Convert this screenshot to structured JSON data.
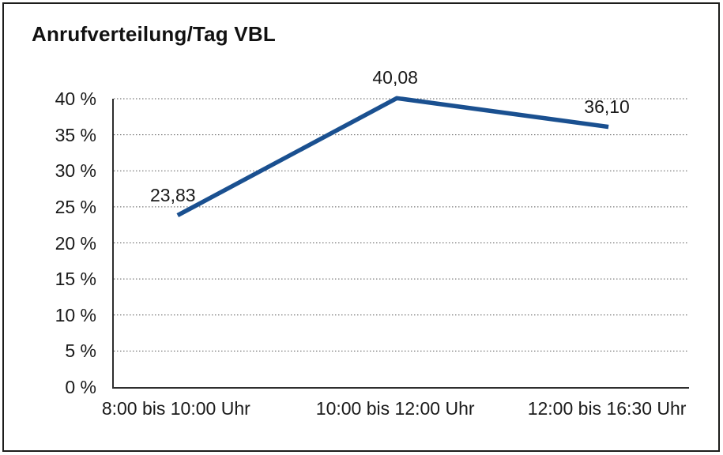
{
  "chart_data": {
    "type": "line",
    "title": "Anrufverteilung/Tag VBL",
    "categories": [
      "8:00 bis 10:00 Uhr",
      "10:00 bis 12:00 Uhr",
      "12:00 bis 16:30 Uhr"
    ],
    "series": [
      {
        "values": [
          23.83,
          40.08,
          36.1
        ]
      }
    ],
    "data_labels": [
      "23,83",
      "40,08",
      "36,10"
    ],
    "y_ticks": [
      {
        "value": 0,
        "label": "0 %"
      },
      {
        "value": 5,
        "label": "5 %"
      },
      {
        "value": 10,
        "label": "10 %"
      },
      {
        "value": 15,
        "label": "15 %"
      },
      {
        "value": 20,
        "label": "20 %"
      },
      {
        "value": 25,
        "label": "25 %"
      },
      {
        "value": 30,
        "label": "30 %"
      },
      {
        "value": 35,
        "label": "35 %"
      },
      {
        "value": 40,
        "label": "40 %"
      }
    ],
    "ylim": [
      0,
      40
    ],
    "xlabel": "",
    "ylabel": "",
    "legend": "none",
    "grid": "horizontal-dotted",
    "colors": {
      "line": "#1a5090",
      "gridline": "#5a5a5a",
      "axis": "#2e2e2e",
      "text": "#1a1a1a",
      "frame_border": "#1d1d1b",
      "background": "#ffffff"
    }
  }
}
